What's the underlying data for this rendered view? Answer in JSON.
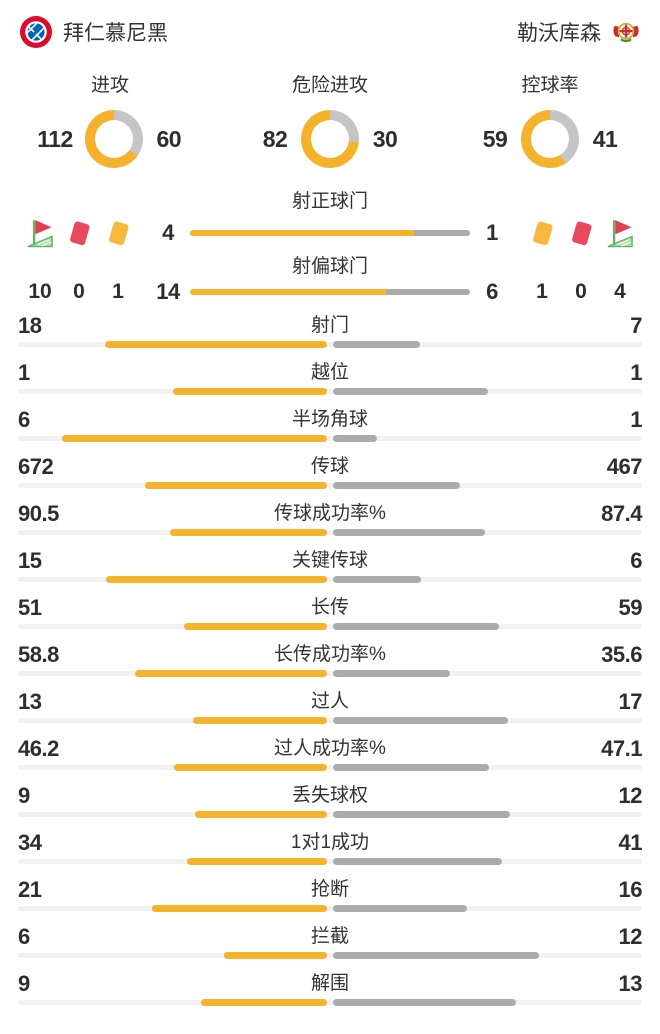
{
  "header": {
    "home_team": "拜仁慕尼黑",
    "away_team": "勒沃库森"
  },
  "colors": {
    "accent_yellow": "#F5B32B",
    "bar_gray": "#ABABAB",
    "donut_gray": "#C5C5C7",
    "track_gray": "#F1F1F2",
    "text_dark": "#333333",
    "card_red": "#E8495F",
    "card_yellow": "#F6B83D",
    "flag_red": "#E33E52",
    "flag_green": "#5CB85C",
    "bayern_red": "#DC0A2D",
    "bayern_blue": "#0066B2",
    "leverkusen_red": "#CC2B36",
    "leverkusen_gold": "#D9A800",
    "leverkusen_green": "#3E8E42"
  },
  "chart_data": {
    "type": "table",
    "teams": [
      "拜仁慕尼黑",
      "勒沃库森"
    ],
    "home_color": "#F5B32B",
    "away_color": "#ABABAB",
    "legend_position": "none",
    "donuts": [
      {
        "label": "进攻",
        "values": [
          112,
          60
        ]
      },
      {
        "label": "危险进攻",
        "values": [
          82,
          30
        ]
      },
      {
        "label": "控球率",
        "values": [
          59,
          41
        ]
      }
    ],
    "shot_bars": [
      {
        "label": "射正球门",
        "values": [
          4,
          1
        ]
      },
      {
        "label": "射偏球门",
        "values": [
          14,
          6
        ]
      }
    ],
    "discipline": {
      "home": [
        {
          "icon": "corner-flag",
          "value": 10
        },
        {
          "icon": "red-card",
          "value": 0
        },
        {
          "icon": "yellow-card",
          "value": 1
        }
      ],
      "away": [
        {
          "icon": "yellow-card",
          "value": 1
        },
        {
          "icon": "red-card",
          "value": 0
        },
        {
          "icon": "corner-flag",
          "value": 4
        }
      ]
    },
    "stats": [
      {
        "label": "射门",
        "values": [
          18,
          7
        ]
      },
      {
        "label": "越位",
        "values": [
          1,
          1
        ]
      },
      {
        "label": "半场角球",
        "values": [
          6,
          1
        ]
      },
      {
        "label": "传球",
        "values": [
          672,
          467
        ]
      },
      {
        "label": "传球成功率%",
        "values": [
          90.5,
          87.4
        ]
      },
      {
        "label": "关键传球",
        "values": [
          15,
          6
        ]
      },
      {
        "label": "长传",
        "values": [
          51,
          59
        ]
      },
      {
        "label": "长传成功率%",
        "values": [
          58.8,
          35.6
        ]
      },
      {
        "label": "过人",
        "values": [
          13,
          17
        ]
      },
      {
        "label": "过人成功率%",
        "values": [
          46.2,
          47.1
        ]
      },
      {
        "label": "丢失球权",
        "values": [
          9,
          12
        ]
      },
      {
        "label": "1对1成功",
        "values": [
          34,
          41
        ]
      },
      {
        "label": "抢断",
        "values": [
          21,
          16
        ]
      },
      {
        "label": "拦截",
        "values": [
          6,
          12
        ]
      },
      {
        "label": "解围",
        "values": [
          9,
          13
        ]
      }
    ]
  }
}
